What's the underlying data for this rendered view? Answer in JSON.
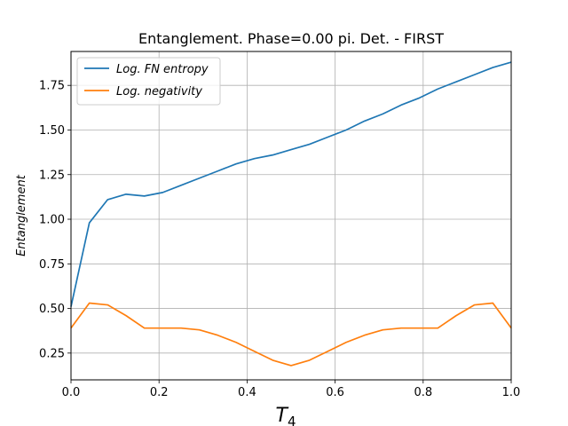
{
  "chart_data": {
    "type": "line",
    "title": "Entanglement. Phase=0.00 pi. Det. - FIRST",
    "xlabel": "T",
    "xlabel_sub": "4",
    "ylabel": "Entanglement",
    "xlim": [
      0.0,
      1.0
    ],
    "ylim": [
      0.1,
      1.94
    ],
    "xticks": [
      "0.0",
      "0.2",
      "0.4",
      "0.6",
      "0.8",
      "1.0"
    ],
    "yticks": [
      "0.25",
      "0.50",
      "0.75",
      "1.00",
      "1.25",
      "1.50",
      "1.75"
    ],
    "grid": true,
    "legend_position": "upper-left",
    "x": [
      0.0,
      0.0417,
      0.0833,
      0.125,
      0.1667,
      0.2083,
      0.25,
      0.2917,
      0.3333,
      0.375,
      0.4167,
      0.4583,
      0.5,
      0.5417,
      0.5833,
      0.625,
      0.6667,
      0.7083,
      0.75,
      0.7917,
      0.8333,
      0.875,
      0.9167,
      0.9583,
      1.0
    ],
    "series": [
      {
        "name": "Log. FN entropy",
        "color": "#1f77b4",
        "values": [
          0.51,
          0.98,
          1.11,
          1.14,
          1.13,
          1.15,
          1.19,
          1.23,
          1.27,
          1.31,
          1.34,
          1.36,
          1.39,
          1.42,
          1.46,
          1.5,
          1.55,
          1.59,
          1.64,
          1.68,
          1.73,
          1.77,
          1.81,
          1.85,
          1.88
        ]
      },
      {
        "name": "Log. negativity",
        "color": "#ff7f0e",
        "values": [
          0.39,
          0.53,
          0.52,
          0.46,
          0.39,
          0.39,
          0.39,
          0.38,
          0.35,
          0.31,
          0.26,
          0.21,
          0.18,
          0.21,
          0.26,
          0.31,
          0.35,
          0.38,
          0.39,
          0.39,
          0.39,
          0.46,
          0.52,
          0.53,
          0.39
        ]
      }
    ]
  }
}
